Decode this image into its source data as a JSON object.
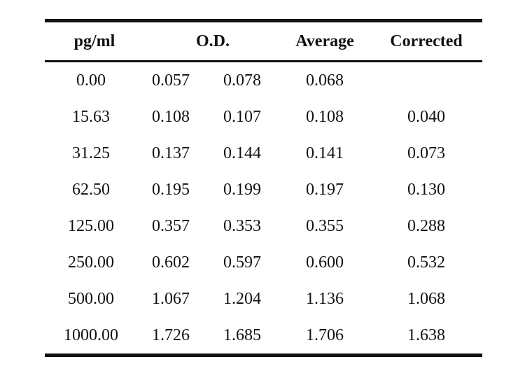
{
  "table": {
    "headers": {
      "pg_ml": "pg/ml",
      "od": "O.D.",
      "average": "Average",
      "corrected": "Corrected"
    },
    "rows": [
      {
        "pg_ml": "0.00",
        "od1": "0.057",
        "od2": "0.078",
        "average": "0.068",
        "corrected": ""
      },
      {
        "pg_ml": "15.63",
        "od1": "0.108",
        "od2": "0.107",
        "average": "0.108",
        "corrected": "0.040"
      },
      {
        "pg_ml": "31.25",
        "od1": "0.137",
        "od2": "0.144",
        "average": "0.141",
        "corrected": "0.073"
      },
      {
        "pg_ml": "62.50",
        "od1": "0.195",
        "od2": "0.199",
        "average": "0.197",
        "corrected": "0.130"
      },
      {
        "pg_ml": "125.00",
        "od1": "0.357",
        "od2": "0.353",
        "average": "0.355",
        "corrected": "0.288"
      },
      {
        "pg_ml": "250.00",
        "od1": "0.602",
        "od2": "0.597",
        "average": "0.600",
        "corrected": "0.532"
      },
      {
        "pg_ml": "500.00",
        "od1": "1.067",
        "od2": "1.204",
        "average": "1.136",
        "corrected": "1.068"
      },
      {
        "pg_ml": "1000.00",
        "od1": "1.726",
        "od2": "1.685",
        "average": "1.706",
        "corrected": "1.638"
      }
    ]
  }
}
